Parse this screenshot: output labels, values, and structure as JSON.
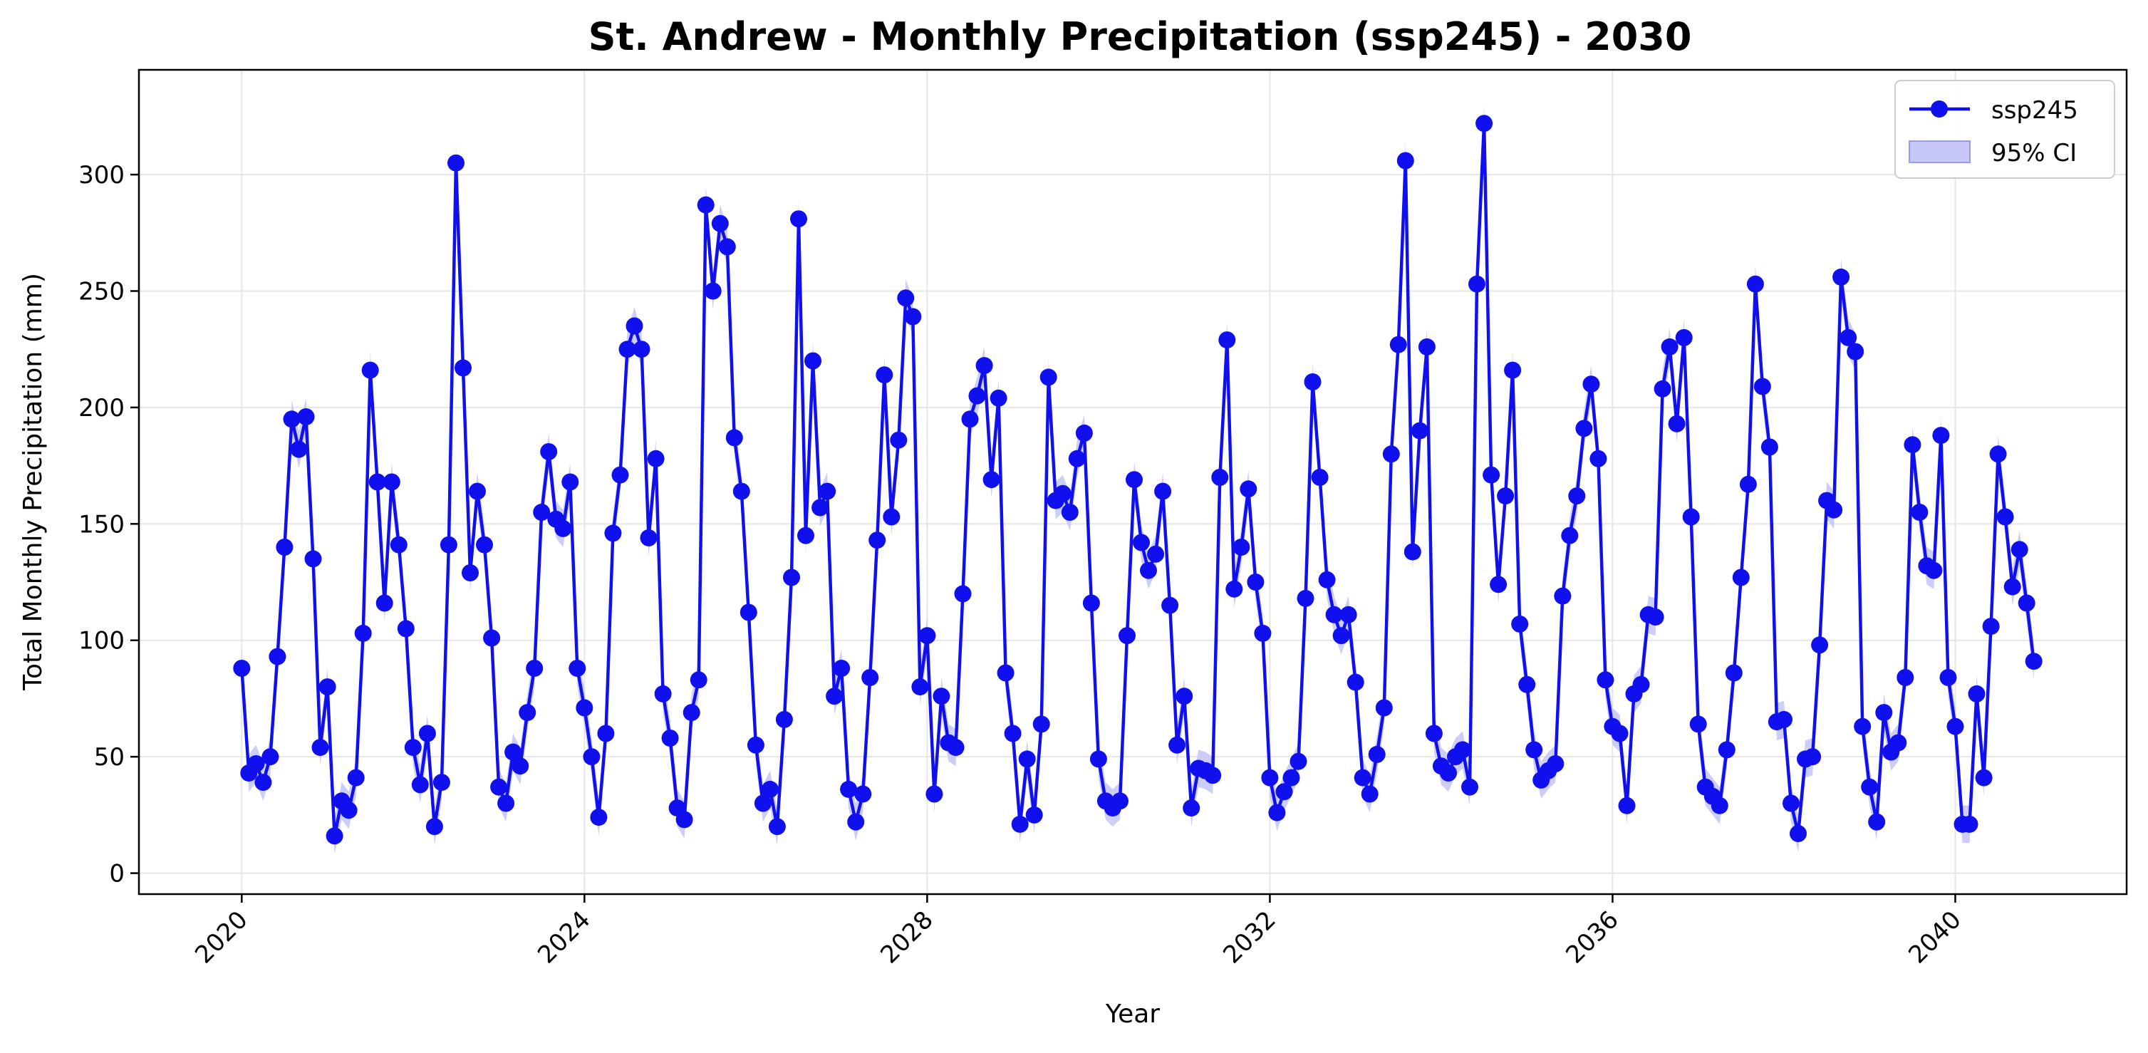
{
  "chart_data": {
    "type": "line",
    "title": "St. Andrew - Monthly Precipitation (ssp245) - 2030",
    "xlabel": "Year",
    "ylabel": "Total Monthly Precipitation (mm)",
    "xlim": [
      2018.8,
      2042.0
    ],
    "ylim": [
      -9,
      345
    ],
    "x_ticks": [
      2020,
      2024,
      2028,
      2032,
      2036,
      2040
    ],
    "x_tick_labels": [
      "2020",
      "2024",
      "2028",
      "2032",
      "2036",
      "2040"
    ],
    "y_ticks": [
      0,
      50,
      100,
      150,
      200,
      250,
      300
    ],
    "y_tick_labels": [
      "0",
      "50",
      "100",
      "150",
      "200",
      "250",
      "300"
    ],
    "grid": true,
    "legend": {
      "position": "top-right",
      "entries": [
        "ssp245",
        "95% CI"
      ]
    },
    "colors": {
      "series": "#1010ee",
      "ci_fill": "#c8c8f8",
      "grid": "#e6e6e6"
    },
    "x_start": "2020-01",
    "x_step": "month",
    "series": [
      {
        "name": "ssp245",
        "ci_halfwidth": 8,
        "values": [
          88,
          43,
          47,
          39,
          50,
          93,
          140,
          195,
          182,
          196,
          135,
          54,
          80,
          16,
          31,
          27,
          41,
          103,
          216,
          168,
          116,
          168,
          141,
          105,
          54,
          38,
          60,
          20,
          39,
          141,
          305,
          217,
          129,
          164,
          141,
          101,
          37,
          30,
          52,
          46,
          69,
          88,
          155,
          181,
          152,
          148,
          168,
          88,
          71,
          50,
          24,
          60,
          146,
          171,
          225,
          235,
          225,
          144,
          178,
          77,
          58,
          28,
          23,
          69,
          83,
          287,
          250,
          279,
          269,
          187,
          164,
          112,
          55,
          30,
          36,
          20,
          66,
          127,
          281,
          145,
          220,
          157,
          164,
          76,
          88,
          36,
          22,
          34,
          84,
          143,
          214,
          153,
          186,
          247,
          239,
          80,
          102,
          34,
          76,
          56,
          54,
          120,
          195,
          205,
          218,
          169,
          204,
          86,
          60,
          21,
          49,
          25,
          64,
          213,
          160,
          163,
          155,
          178,
          189,
          116,
          49,
          31,
          28,
          31,
          102,
          169,
          142,
          130,
          137,
          164,
          115,
          55,
          76,
          28,
          45,
          44,
          42,
          170,
          229,
          122,
          140,
          165,
          125,
          103,
          41,
          26,
          35,
          41,
          48,
          118,
          211,
          170,
          126,
          111,
          102,
          111,
          82,
          41,
          34,
          51,
          71,
          180,
          227,
          306,
          138,
          190,
          226,
          60,
          46,
          43,
          50,
          53,
          37,
          253,
          322,
          171,
          124,
          162,
          216,
          107,
          81,
          53,
          40,
          44,
          47,
          119,
          145,
          162,
          191,
          210,
          178,
          83,
          63,
          60,
          29,
          77,
          81,
          111,
          110,
          208,
          226,
          193,
          230,
          153,
          64,
          37,
          33,
          29,
          53,
          86,
          127,
          167,
          253,
          209,
          183,
          65,
          66,
          30,
          17,
          49,
          50,
          98,
          160,
          156,
          256,
          230,
          224,
          63,
          37,
          22,
          69,
          52,
          56,
          84,
          184,
          155,
          132,
          130,
          188,
          84,
          63,
          21,
          21,
          77,
          41,
          106,
          180,
          153,
          123,
          139,
          116,
          91
        ]
      }
    ]
  }
}
